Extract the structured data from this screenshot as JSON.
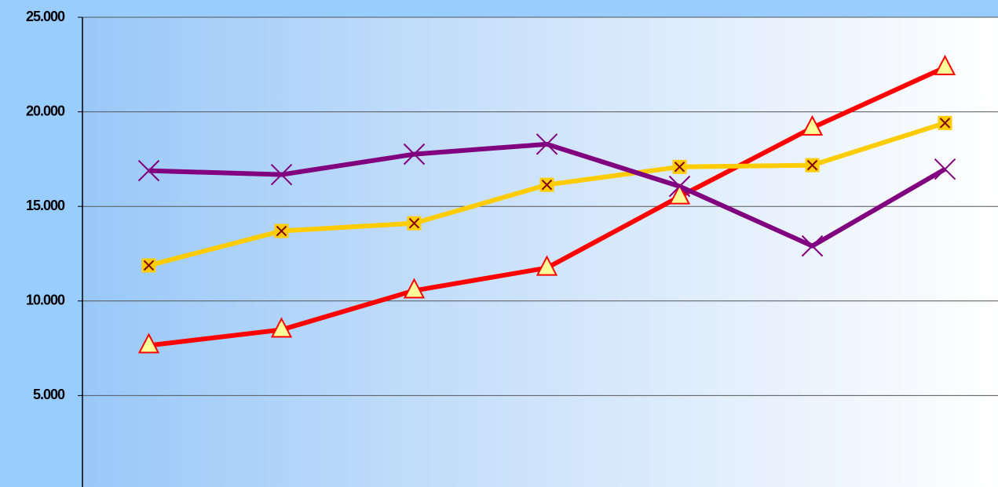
{
  "chart_data": {
    "type": "line",
    "categories": [
      null,
      null,
      null,
      null,
      null,
      null,
      null
    ],
    "series": [
      {
        "color": "#ff0000",
        "marker": "triangle",
        "values": [
          7650,
          8480,
          10550,
          11750,
          15520,
          19160,
          22350
        ]
      },
      {
        "color": "#ffcc00",
        "marker": "square-x",
        "values": [
          11880,
          13700,
          14110,
          16140,
          17090,
          17180,
          19410
        ]
      },
      {
        "color": "#800080",
        "marker": "x",
        "values": [
          16890,
          16680,
          17760,
          18290,
          16060,
          12910,
          16970
        ]
      }
    ],
    "ylim": [
      0,
      25000
    ],
    "yticks": [
      {
        "value": 5000,
        "label": "5.000"
      },
      {
        "value": 10000,
        "label": "10.000"
      },
      {
        "value": 15000,
        "label": "15.000"
      },
      {
        "value": 20000,
        "label": "20.000"
      },
      {
        "value": 25000,
        "label": "25.000"
      }
    ],
    "grid": true
  }
}
